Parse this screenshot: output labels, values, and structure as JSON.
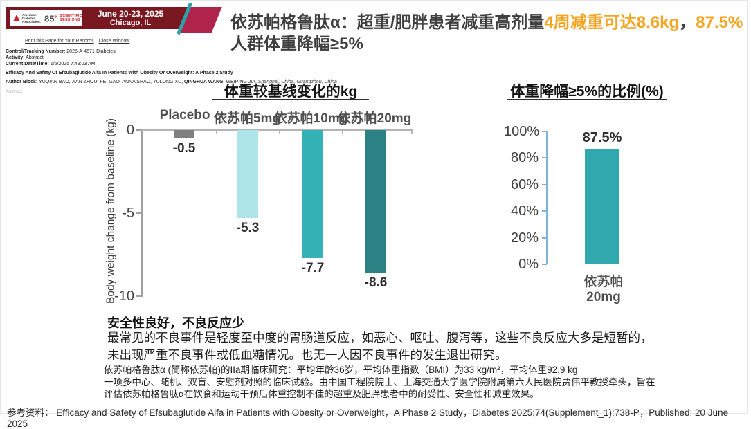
{
  "banner": {
    "org": "American Diabetes Association.",
    "session_number": "85",
    "session_sup": "th",
    "session_word1": "SCIENTIFIC",
    "session_word2": "SESSIONS",
    "date": "June 20-23, 2025",
    "location": "Chicago, IL"
  },
  "links": {
    "print": "Print this Page for Your Records",
    "close": "Close Window"
  },
  "meta": {
    "tracking_label": "Control/Tracking Number:",
    "tracking_value": " 2025-A-4571-Diabetes",
    "activity_label": "Activity:",
    "activity_value": " Abstract",
    "datetime_label": "Current Date/Time:",
    "datetime_value": " 1/6/2025 7:49:03 AM",
    "abstract_title": "Efficacy And Safety Of Efsubaglutide Alfa In Patients With Obesity Or Overweight: A Phase 2 Study",
    "author_label": "Author Block:",
    "authors_pre": " YUQIAN BAO, JIAN ZHOU, FEI GAO, ANNA SHAO, YULONG XU, ",
    "author_bold": "QINGHUA WANG",
    "authors_mid": ", WEIPING JIA, ",
    "authors_cities": "Shanghai, China, Guangzhou, China",
    "abstract_faint": "Abstract:"
  },
  "headline": {
    "part1": "依苏帕格鲁肽α：超重/肥胖患者减重高剂量",
    "highlight1": "4周减重可达8.6kg",
    "part2": "，",
    "highlight2": "87.5%",
    "part3": "人群体重降幅≥5%",
    "highlight_color": "#F6A31E"
  },
  "chart_data": [
    {
      "type": "bar",
      "title": "体重较基线变化的kg",
      "categories": [
        "Placebo",
        "依苏帕5mg",
        "依苏帕10mg",
        "依苏帕20mg"
      ],
      "values": [
        -0.5,
        -5.3,
        -7.7,
        -8.6
      ],
      "data_labels": [
        "-0.5",
        "-5.3",
        "-7.7",
        "-8.6"
      ],
      "bar_colors": [
        "#7F7F7F",
        "#ADE5E8",
        "#35B2B6",
        "#2C8185"
      ],
      "ylabel": "Body weight change from baseline (kg)",
      "ylim": [
        -10,
        0
      ],
      "yticks": [
        "0",
        "-5",
        "-10"
      ],
      "axis_color": "#A0A0A0",
      "grid": false,
      "legend": "none"
    },
    {
      "type": "bar",
      "title": "体重降幅≥5%的比例(%)",
      "categories": [
        "依苏帕20mg"
      ],
      "values": [
        87.5
      ],
      "data_labels": [
        "87.5%"
      ],
      "bar_colors": [
        "#31A8AD"
      ],
      "ylim": [
        0,
        100
      ],
      "yticks": [
        "100%",
        "80%",
        "60%",
        "40%",
        "20%",
        "0%"
      ],
      "axis_color": "#7FB3D9",
      "grid": false,
      "legend": "none"
    }
  ],
  "safety": {
    "heading": "安全性良好，不良反应少",
    "line1": "最常见的不良事件是轻度至中度的胃肠道反应，如恶心、呕吐、腹泻等，这些不良反应大多是短暂的，",
    "line2": "未出现严重不良事件或低血糖情况。也无一人因不良事件的发生退出研究。"
  },
  "study": {
    "line1": "依苏帕格鲁肽α (简称依苏帕)的IIa期临床研究：平均年龄36岁，平均体重指数（BMI）为33 kg/m²，平均体重92.9 kg",
    "line2": "一项多中心、随机、双盲、安慰剂对照的临床试验。由中国工程院院士、上海交通大学医学院附属第六人民医院贾伟平教授牵头，旨在",
    "line3": "评估依苏帕格鲁肽α在饮食和运动干预后体重控制不佳的超重及肥胖患者中的耐受性、安全性和减重效果。"
  },
  "reference": {
    "label": "参考资料：",
    "text": " Efficacy and Safety of Efsubaglutide Alfa in Patients with Obesity or Overweight，A Phase 2 Study，Diabetes 2025;74(Supplement_1):738-P，Published: 20 June 2025"
  }
}
